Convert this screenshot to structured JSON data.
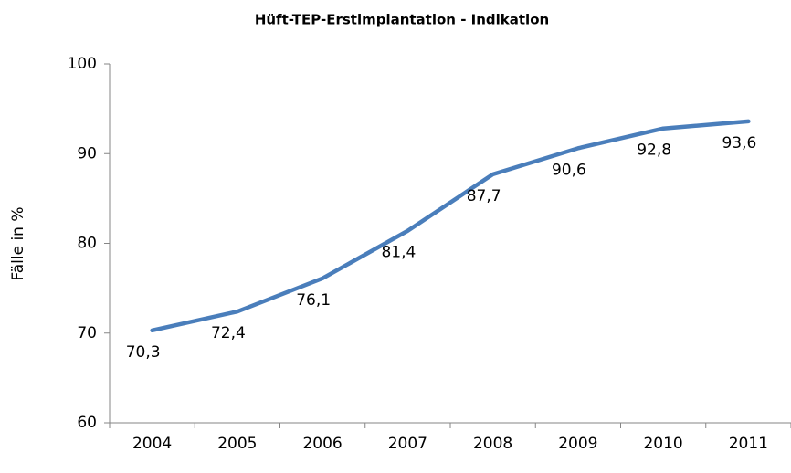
{
  "chart_data": {
    "type": "line",
    "title": "Hüft-TEP-Erstimplantation  - Indikation",
    "ylabel": "Fälle in %",
    "categories": [
      "2004",
      "2005",
      "2006",
      "2007",
      "2008",
      "2009",
      "2010",
      "2011"
    ],
    "values": [
      70.3,
      72.4,
      76.1,
      81.4,
      87.7,
      90.6,
      92.8,
      93.6
    ],
    "value_labels": [
      "70,3",
      "72,4",
      "76,1",
      "81,4",
      "87,7",
      "90,6",
      "92,8",
      "93,6"
    ],
    "color": "#4a7ebb",
    "ylim": [
      60,
      100
    ],
    "yticks": [
      60,
      70,
      80,
      90,
      100
    ],
    "grid": false
  }
}
